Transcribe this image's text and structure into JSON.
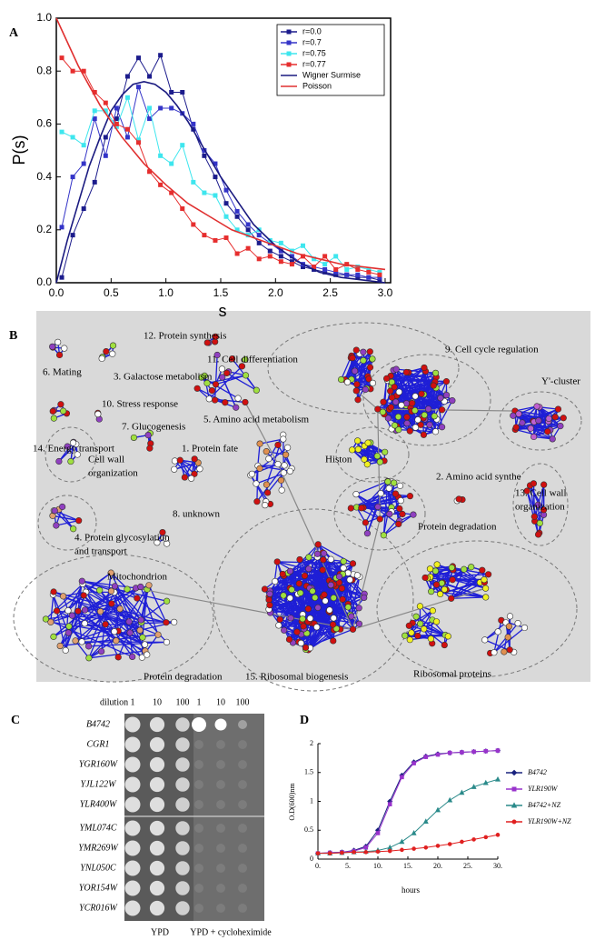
{
  "panel_labels": [
    "A",
    "B",
    "C",
    "D"
  ],
  "chart_data": [
    {
      "type": "line",
      "xlabel": "s",
      "ylabel": "P(s)",
      "xlim": [
        0,
        3.05
      ],
      "ylim": [
        0,
        1
      ],
      "xticks": [
        {
          "value": 0,
          "label": "0.0"
        },
        0.5,
        {
          "value": 1,
          "label": "1.0"
        },
        1.5,
        {
          "value": 2,
          "label": "2.0"
        },
        2.5,
        {
          "value": 3,
          "label": "3.0"
        }
      ],
      "yticks": [
        {
          "value": 0,
          "label": "0.0"
        },
        0.2,
        0.4,
        0.6,
        0.8,
        {
          "value": 1,
          "label": "1.0"
        }
      ],
      "grid": false,
      "legend": "upper right",
      "x": [
        0.05,
        0.15,
        0.25,
        0.35,
        0.45,
        0.55,
        0.65,
        0.75,
        0.85,
        0.95,
        1.05,
        1.15,
        1.25,
        1.35,
        1.45,
        1.55,
        1.65,
        1.75,
        1.85,
        1.95,
        2.05,
        2.15,
        2.25,
        2.35,
        2.45,
        2.55,
        2.65,
        2.75,
        2.85,
        2.95
      ],
      "series": [
        {
          "name": "r=0.0",
          "color": "#1c1c8c",
          "marker": "square",
          "values": [
            0.02,
            0.18,
            0.28,
            0.38,
            0.55,
            0.62,
            0.78,
            0.85,
            0.78,
            0.86,
            0.72,
            0.72,
            0.58,
            0.48,
            0.4,
            0.3,
            0.25,
            0.2,
            0.15,
            0.12,
            0.1,
            0.08,
            0.06,
            0.05,
            0.04,
            0.03,
            0.03,
            0.02,
            0.02,
            0.01
          ]
        },
        {
          "name": "r=0.7",
          "color": "#3535c8",
          "marker": "square",
          "values": [
            0.21,
            0.4,
            0.45,
            0.62,
            0.48,
            0.66,
            0.55,
            0.74,
            0.62,
            0.66,
            0.66,
            0.64,
            0.6,
            0.5,
            0.45,
            0.35,
            0.27,
            0.22,
            0.18,
            0.15,
            0.12,
            0.1,
            0.07,
            0.06,
            0.05,
            0.04,
            0.03,
            0.03,
            0.02,
            0.02
          ]
        },
        {
          "name": "r=0.75",
          "color": "#3ee6ee",
          "marker": "square",
          "values": [
            0.57,
            0.55,
            0.52,
            0.65,
            0.65,
            0.59,
            0.7,
            0.54,
            0.66,
            0.48,
            0.45,
            0.52,
            0.38,
            0.34,
            0.33,
            0.25,
            0.2,
            0.18,
            0.2,
            0.16,
            0.15,
            0.12,
            0.14,
            0.09,
            0.07,
            0.1,
            0.05,
            0.06,
            0.05,
            0.04
          ]
        },
        {
          "name": "r=0.77",
          "color": "#e62e2e",
          "marker": "square",
          "values": [
            0.85,
            0.8,
            0.8,
            0.72,
            0.68,
            0.6,
            0.58,
            0.53,
            0.42,
            0.37,
            0.34,
            0.28,
            0.22,
            0.18,
            0.16,
            0.17,
            0.11,
            0.13,
            0.09,
            0.1,
            0.08,
            0.07,
            0.1,
            0.06,
            0.1,
            0.05,
            0.07,
            0.05,
            0.04,
            0.03
          ]
        },
        {
          "name": "Wigner Surmise",
          "color": "#1a1a80",
          "marker": "none",
          "x": [
            0,
            0.1,
            0.2,
            0.3,
            0.4,
            0.5,
            0.6,
            0.7,
            0.8,
            0.9,
            1.0,
            1.1,
            1.2,
            1.3,
            1.4,
            1.5,
            1.6,
            1.7,
            1.8,
            1.9,
            2.0,
            2.2,
            2.4,
            2.6,
            2.8,
            3.0
          ],
          "values": [
            0,
            0.16,
            0.3,
            0.44,
            0.55,
            0.65,
            0.71,
            0.75,
            0.76,
            0.75,
            0.72,
            0.67,
            0.61,
            0.54,
            0.47,
            0.4,
            0.34,
            0.28,
            0.22,
            0.18,
            0.14,
            0.08,
            0.04,
            0.02,
            0.01,
            0
          ]
        },
        {
          "name": "Poisson",
          "color": "#e03030",
          "marker": "none",
          "x": [
            0,
            0.2,
            0.4,
            0.6,
            0.8,
            1.0,
            1.2,
            1.4,
            1.6,
            1.8,
            2.0,
            2.2,
            2.4,
            2.6,
            2.8,
            3.0
          ],
          "values": [
            1,
            0.82,
            0.67,
            0.55,
            0.45,
            0.37,
            0.3,
            0.25,
            0.2,
            0.17,
            0.14,
            0.11,
            0.09,
            0.07,
            0.06,
            0.05
          ]
        }
      ]
    },
    {
      "type": "line",
      "xlabel": "hours",
      "ylabel": "O.D(600)nm",
      "xlim": [
        0,
        30
      ],
      "ylim": [
        0,
        2
      ],
      "xticks": [
        {
          "value": 0,
          "label": "0."
        },
        {
          "value": 5,
          "label": "5."
        },
        {
          "value": 10,
          "label": "10."
        },
        {
          "value": 15,
          "label": "15."
        },
        {
          "value": 20,
          "label": "20."
        },
        {
          "value": 25,
          "label": "25."
        },
        {
          "value": 30,
          "label": "30."
        }
      ],
      "yticks": [
        0,
        0.5,
        1,
        1.5,
        2
      ],
      "grid": false,
      "legend": "right",
      "x": [
        0,
        2,
        4,
        6,
        8,
        10,
        12,
        14,
        16,
        18,
        20,
        22,
        24,
        26,
        28,
        30
      ],
      "series": [
        {
          "name": "B4742",
          "color": "#1a237e",
          "marker": "diamond",
          "values": [
            0.1,
            0.11,
            0.12,
            0.15,
            0.22,
            0.5,
            1.0,
            1.45,
            1.68,
            1.78,
            1.82,
            1.84,
            1.85,
            1.86,
            1.87,
            1.88
          ]
        },
        {
          "name": "YLR190W",
          "color": "#9933cc",
          "marker": "square",
          "values": [
            0.1,
            0.11,
            0.12,
            0.14,
            0.2,
            0.45,
            0.95,
            1.42,
            1.66,
            1.77,
            1.81,
            1.84,
            1.85,
            1.86,
            1.87,
            1.88
          ]
        },
        {
          "name": "B4742+NZ",
          "color": "#2a8a8a",
          "marker": "triangle",
          "values": [
            0.1,
            0.1,
            0.11,
            0.12,
            0.13,
            0.15,
            0.2,
            0.3,
            0.45,
            0.65,
            0.85,
            1.02,
            1.15,
            1.25,
            1.32,
            1.38
          ]
        },
        {
          "name": "YLR190W+NZ",
          "color": "#e02020",
          "marker": "circle",
          "values": [
            0.1,
            0.1,
            0.11,
            0.12,
            0.12,
            0.13,
            0.14,
            0.16,
            0.18,
            0.2,
            0.23,
            0.26,
            0.3,
            0.34,
            0.38,
            0.42
          ]
        }
      ]
    }
  ],
  "network": {
    "labels": [
      [
        "12. Protein synthesis"
      ],
      [
        "11. Cell differentiation"
      ],
      [
        "9. Cell cycle regulation"
      ],
      [
        "6. Mating"
      ],
      [
        "3. Galactose metabolism"
      ],
      [
        "Y'-cluster"
      ],
      [
        "10. Stress response"
      ],
      [
        "5. Amino acid metabolism"
      ],
      [
        "7. Glucogenesis"
      ],
      [
        "14. Energy transport"
      ],
      [
        "1. Protein fate"
      ],
      [
        "Histon"
      ],
      [
        "Cell wall",
        "organization"
      ],
      [
        "2. Amino acid synthe"
      ],
      [
        "13. Cell wall",
        "organization"
      ],
      [
        "8. unknown"
      ],
      [
        "Protein degradation"
      ],
      [
        "4. Protein glycosylation",
        "and transport"
      ],
      [
        "Mitochondrion"
      ],
      [
        "Protein degradation"
      ],
      [
        "15. Ribosomal biogenesis"
      ],
      [
        "Ribosomal proteins"
      ]
    ]
  },
  "plate": {
    "dilution_label": "dilution",
    "dilutions": [
      "1",
      "10",
      "100"
    ],
    "strains": [
      "B4742",
      "CGR1",
      "YGR160W",
      "YJL122W",
      "YLR400W",
      "YML074C",
      "YMR269W",
      "YNL050C",
      "YOR154W",
      "YCR016W"
    ],
    "media": [
      "YPD",
      "YPD + cycloheximide"
    ]
  }
}
